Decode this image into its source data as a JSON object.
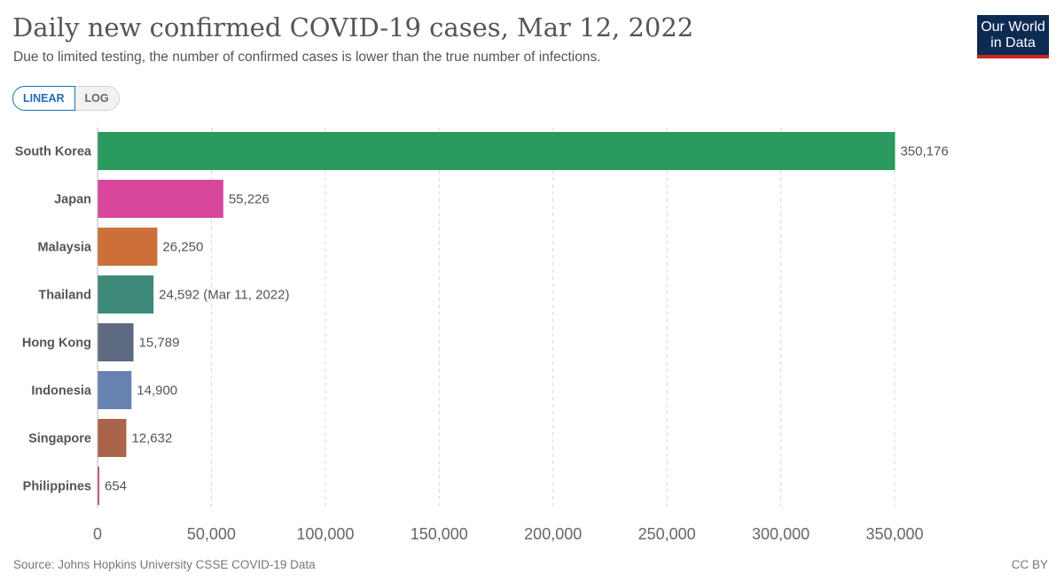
{
  "header": {
    "title": "Daily new confirmed COVID-19 cases, Mar 12, 2022",
    "subtitle": "Due to limited testing, the number of confirmed cases is lower than the true number of infections."
  },
  "logo": {
    "line1": "Our World",
    "line2": "in Data",
    "bg_color": "#0d2a52",
    "accent_color": "#ce261e"
  },
  "scale_toggle": {
    "linear_label": "LINEAR",
    "log_label": "LOG",
    "selected": "LINEAR"
  },
  "chart_data": {
    "type": "bar",
    "orientation": "horizontal",
    "title": "Daily new confirmed COVID-19 cases, Mar 12, 2022",
    "xlim": [
      0,
      350000
    ],
    "grid": true,
    "x_ticks": [
      0,
      50000,
      100000,
      150000,
      200000,
      250000,
      300000,
      350000
    ],
    "x_tick_labels": [
      "0",
      "50,000",
      "100,000",
      "150,000",
      "200,000",
      "250,000",
      "300,000",
      "350,000"
    ],
    "categories": [
      "South Korea",
      "Japan",
      "Malaysia",
      "Thailand",
      "Hong Kong",
      "Indonesia",
      "Singapore",
      "Philippines"
    ],
    "values": [
      350176,
      55226,
      26250,
      24592,
      15789,
      14900,
      12632,
      654
    ],
    "value_labels": [
      "350,176",
      "55,226",
      "26,250",
      "24,592 (Mar 11, 2022)",
      "15,789",
      "14,900",
      "12,632",
      "654"
    ],
    "colors": [
      "#2a9a5f",
      "#d9479d",
      "#cc6f38",
      "#3d8a78",
      "#5d6a82",
      "#6781b0",
      "#a9644a",
      "#c9405d"
    ]
  },
  "footer": {
    "source": "Source: Johns Hopkins University CSSE COVID-19 Data",
    "license": "CC BY"
  }
}
